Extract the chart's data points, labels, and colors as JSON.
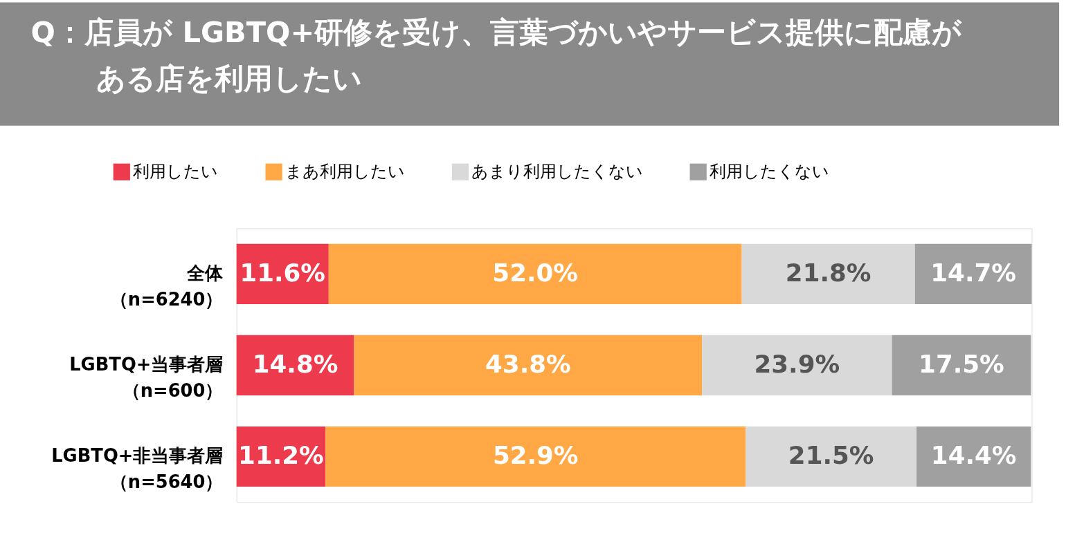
{
  "chart_data": {
    "type": "bar",
    "orientation": "horizontal",
    "stacked": true,
    "title": "Q：店員が LGBTQ+研修を受け、言葉づかいやサービス提供に配慮がある店を利用したい",
    "categories": [
      "全体（n=6240）",
      "LGBTQ+当事者層（n=600）",
      "LGBTQ+非当事者層（n=5640）"
    ],
    "series": [
      {
        "name": "利用したい",
        "color": "#ee3a4d",
        "values": [
          11.6,
          14.8,
          11.2
        ],
        "value_labels": [
          "11.6%",
          "14.8%",
          "11.2%"
        ]
      },
      {
        "name": "まあ利用したい",
        "color": "#ffa845",
        "values": [
          52.0,
          43.8,
          52.9
        ],
        "value_labels": [
          "52.0%",
          "43.8%",
          "52.9%"
        ]
      },
      {
        "name": "あまり利用したくない",
        "color": "#d9d9d9",
        "values": [
          21.8,
          23.9,
          21.5
        ],
        "value_labels": [
          "21.8%",
          "23.9%",
          "21.5%"
        ]
      },
      {
        "name": "利用したくない",
        "color": "#a0a0a0",
        "values": [
          14.7,
          17.5,
          14.4
        ],
        "value_labels": [
          "14.7%",
          "17.5%",
          "14.4%"
        ]
      }
    ],
    "xlim": [
      0,
      100.1
    ],
    "tick_labels": "y",
    "legend": "top"
  }
}
